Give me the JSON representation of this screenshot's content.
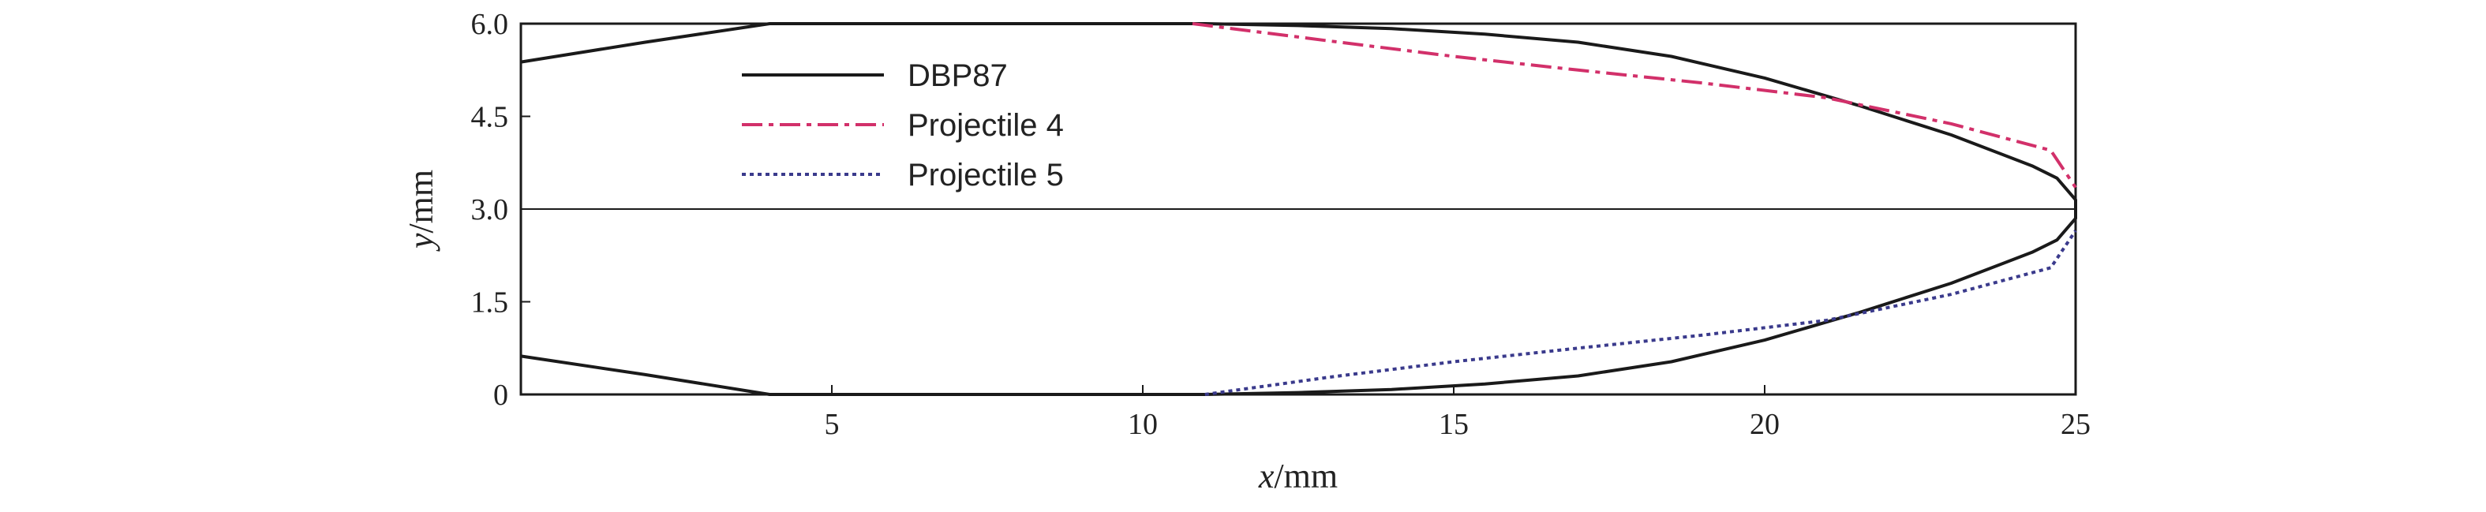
{
  "chart_data": {
    "type": "line",
    "xlabel": {
      "var": "x",
      "unit": "/mm"
    },
    "ylabel": {
      "var": "y",
      "unit": "/mm"
    },
    "xlim": [
      0,
      25
    ],
    "ylim": [
      0,
      6
    ],
    "xticks": [
      5,
      10,
      15,
      20,
      25
    ],
    "yticks": [
      0,
      1.5,
      3.0,
      4.5,
      6.0
    ],
    "ytick_labels": [
      "0",
      "1.5",
      "3.0",
      "4.5",
      "6.0"
    ],
    "reference_line_y": 3.0,
    "grid": false,
    "legend": "top-left",
    "series": [
      {
        "name": "DBP87",
        "color": "#1a1a1a",
        "dash": "solid",
        "segments": [
          [
            [
              0,
              5.38
            ],
            [
              2,
              5.7
            ],
            [
              4,
              6.0
            ],
            [
              8,
              6.0
            ],
            [
              10,
              6.0
            ],
            [
              11,
              6.0
            ],
            [
              12.5,
              5.97
            ],
            [
              14,
              5.92
            ],
            [
              15.5,
              5.83
            ],
            [
              17,
              5.7
            ],
            [
              18.5,
              5.47
            ],
            [
              20,
              5.12
            ],
            [
              21.5,
              4.68
            ],
            [
              23,
              4.2
            ],
            [
              24.3,
              3.7
            ],
            [
              24.7,
              3.5
            ],
            [
              25,
              3.15
            ],
            [
              25,
              3.0
            ]
          ],
          [
            [
              0,
              0.62
            ],
            [
              2,
              0.32
            ],
            [
              4,
              0.0
            ],
            [
              8,
              0.0
            ],
            [
              10,
              0.0
            ],
            [
              11,
              0.0
            ],
            [
              12.5,
              0.03
            ],
            [
              14,
              0.08
            ],
            [
              15.5,
              0.17
            ],
            [
              17,
              0.3
            ],
            [
              18.5,
              0.53
            ],
            [
              20,
              0.88
            ],
            [
              21.5,
              1.32
            ],
            [
              23,
              1.8
            ],
            [
              24.3,
              2.3
            ],
            [
              24.7,
              2.5
            ],
            [
              25,
              2.85
            ],
            [
              25,
              3.0
            ]
          ]
        ]
      },
      {
        "name": "Projectile 4",
        "color": "#d2306a",
        "dash": "dashdot",
        "segments": [
          [
            [
              10.8,
              6.0
            ],
            [
              13,
              5.72
            ],
            [
              15,
              5.47
            ],
            [
              17,
              5.25
            ],
            [
              19,
              5.04
            ],
            [
              21,
              4.8
            ],
            [
              23,
              4.38
            ],
            [
              24.6,
              3.95
            ],
            [
              25,
              3.35
            ]
          ]
        ]
      },
      {
        "name": "Projectile 5",
        "color": "#3a3a8c",
        "dash": "dotted",
        "segments": [
          [
            [
              11,
              0.0
            ],
            [
              13,
              0.28
            ],
            [
              15,
              0.53
            ],
            [
              17,
              0.75
            ],
            [
              19,
              0.96
            ],
            [
              21,
              1.2
            ],
            [
              23,
              1.62
            ],
            [
              24.6,
              2.05
            ],
            [
              25,
              2.65
            ]
          ]
        ]
      }
    ]
  }
}
